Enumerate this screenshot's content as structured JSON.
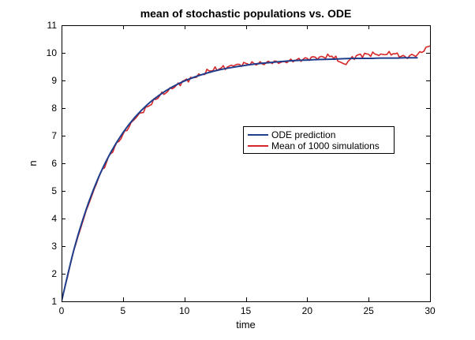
{
  "chart_data": {
    "type": "line",
    "title": "mean of stochastic populations vs. ODE",
    "xlabel": "time",
    "ylabel": "n",
    "xlim": [
      0,
      30
    ],
    "ylim": [
      1,
      11
    ],
    "xticks": [
      0,
      5,
      10,
      15,
      20,
      25,
      30
    ],
    "yticks": [
      1,
      2,
      3,
      4,
      5,
      6,
      7,
      8,
      9,
      10,
      11
    ],
    "grid": false,
    "legend_position": "center-right",
    "series": [
      {
        "name": "ODE prediction",
        "color": "#1f3f8c",
        "x": [
          0,
          1,
          2,
          3,
          4,
          5,
          6,
          7,
          8,
          9,
          10,
          11,
          12,
          13,
          14,
          15,
          16,
          17,
          18,
          19,
          20,
          21,
          22,
          23,
          24,
          25,
          26,
          27,
          28,
          29
        ],
        "values": [
          1.0,
          2.86,
          4.32,
          5.48,
          6.39,
          7.11,
          7.68,
          8.13,
          8.48,
          8.76,
          8.98,
          9.15,
          9.29,
          9.4,
          9.48,
          9.55,
          9.61,
          9.65,
          9.69,
          9.72,
          9.74,
          9.76,
          9.77,
          9.79,
          9.8,
          9.8,
          9.81,
          9.81,
          9.82,
          9.82
        ]
      },
      {
        "name": "Mean of 1000 simulations",
        "color": "#d62728",
        "x": [
          0,
          1,
          2,
          3,
          4,
          5,
          6,
          7,
          8,
          9,
          10,
          11,
          12,
          13,
          14,
          15,
          16,
          17,
          18,
          19,
          20,
          21,
          22,
          23,
          24,
          25,
          26,
          27,
          28,
          29,
          30
        ],
        "values": [
          1.0,
          2.85,
          4.28,
          5.45,
          6.35,
          7.05,
          7.62,
          8.05,
          8.45,
          8.7,
          9.0,
          9.12,
          9.35,
          9.45,
          9.52,
          9.62,
          9.6,
          9.65,
          9.68,
          9.72,
          9.8,
          9.85,
          9.88,
          9.6,
          9.9,
          9.95,
          9.96,
          9.97,
          9.85,
          9.95,
          10.25
        ]
      }
    ]
  }
}
